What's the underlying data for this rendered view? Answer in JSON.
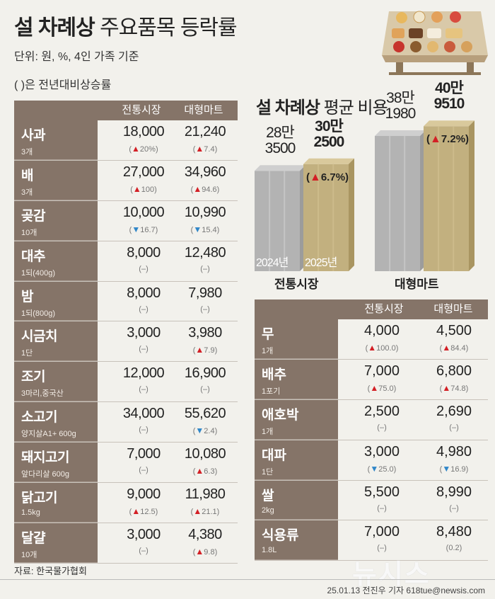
{
  "header": {
    "title_bold": "설 차례상",
    "title_rest": "주요품목 등락률",
    "unit": "단위: 원, %, 4인 가족 기준",
    "note": "( )은 전년대비상승률"
  },
  "colors": {
    "brown": "#857468",
    "up": "#d31f25",
    "down": "#2f86c8",
    "gray_bar": "#b3b3b3",
    "gold_bar": "#c2b07f"
  },
  "left_table": {
    "columns": [
      "전통시장",
      "대형마트"
    ],
    "rows": [
      {
        "name": "사과",
        "unit": "3개",
        "v1": "18,000",
        "c1": {
          "dir": "up",
          "val": "20%"
        },
        "v2": "21,240",
        "c2": {
          "dir": "up",
          "val": "7.4"
        }
      },
      {
        "name": "배",
        "unit": "3개",
        "v1": "27,000",
        "c1": {
          "dir": "up",
          "val": "100"
        },
        "v2": "34,960",
        "c2": {
          "dir": "up",
          "val": "94.6"
        }
      },
      {
        "name": "곶감",
        "unit": "10개",
        "v1": "10,000",
        "c1": {
          "dir": "down",
          "val": "16.7"
        },
        "v2": "10,990",
        "c2": {
          "dir": "down",
          "val": "15.4"
        }
      },
      {
        "name": "대추",
        "unit": "1되(400g)",
        "v1": "8,000",
        "c1": {
          "dir": "none",
          "val": "–"
        },
        "v2": "12,480",
        "c2": {
          "dir": "none",
          "val": "–"
        }
      },
      {
        "name": "밤",
        "unit": "1되(800g)",
        "v1": "8,000",
        "c1": {
          "dir": "none",
          "val": "–"
        },
        "v2": "7,980",
        "c2": {
          "dir": "none",
          "val": "–"
        }
      },
      {
        "name": "시금치",
        "unit": "1단",
        "v1": "3,000",
        "c1": {
          "dir": "none",
          "val": "–"
        },
        "v2": "3,980",
        "c2": {
          "dir": "up",
          "val": "7.9"
        }
      },
      {
        "name": "조기",
        "unit": "3마리,중국산",
        "v1": "12,000",
        "c1": {
          "dir": "none",
          "val": "–"
        },
        "v2": "16,900",
        "c2": {
          "dir": "none",
          "val": "–"
        }
      },
      {
        "name": "소고기",
        "unit": "양지살A1+ 600g",
        "v1": "34,000",
        "c1": {
          "dir": "none",
          "val": "–"
        },
        "v2": "55,620",
        "c2": {
          "dir": "down",
          "val": "2.4"
        }
      },
      {
        "name": "돼지고기",
        "unit": "앞다리살 600g",
        "v1": "7,000",
        "c1": {
          "dir": "none",
          "val": "–"
        },
        "v2": "10,080",
        "c2": {
          "dir": "up",
          "val": "6.3"
        }
      },
      {
        "name": "닭고기",
        "unit": "1.5kg",
        "v1": "9,000",
        "c1": {
          "dir": "up",
          "val": "12.5"
        },
        "v2": "11,980",
        "c2": {
          "dir": "up",
          "val": "21.1"
        }
      },
      {
        "name": "달걀",
        "unit": "10개",
        "v1": "3,000",
        "c1": {
          "dir": "none",
          "val": "–"
        },
        "v2": "4,380",
        "c2": {
          "dir": "up",
          "val": "9.8"
        }
      }
    ]
  },
  "chart_data": {
    "type": "bar",
    "title": "설 차례상 평균 비용",
    "title_bold": "설 차례상",
    "title_rest": "평균 비용",
    "categories": [
      "전통시장",
      "대형마트"
    ],
    "series": [
      {
        "name": "2024년",
        "values": [
          283500,
          381980
        ]
      },
      {
        "name": "2025년",
        "values": [
          302500,
          409510
        ]
      }
    ],
    "value_labels": [
      {
        "line1": "28만",
        "line2": "3500"
      },
      {
        "line1": "30만",
        "line2": "2500"
      },
      {
        "line1": "38만",
        "line2": "1980"
      },
      {
        "line1": "40만",
        "line2": "9510"
      }
    ],
    "growth": [
      "6.7%",
      "7.2%"
    ],
    "ylim": [
      0,
      420000
    ]
  },
  "right_table": {
    "columns": [
      "전통시장",
      "대형마트"
    ],
    "rows": [
      {
        "name": "무",
        "unit": "1개",
        "v1": "4,000",
        "c1": {
          "dir": "up",
          "val": "100.0"
        },
        "v2": "4,500",
        "c2": {
          "dir": "up",
          "val": "84.4"
        }
      },
      {
        "name": "배추",
        "unit": "1포기",
        "v1": "7,000",
        "c1": {
          "dir": "up",
          "val": "75.0"
        },
        "v2": "6,800",
        "c2": {
          "dir": "up",
          "val": "74.8"
        }
      },
      {
        "name": "애호박",
        "unit": "1개",
        "v1": "2,500",
        "c1": {
          "dir": "none",
          "val": "–"
        },
        "v2": "2,690",
        "c2": {
          "dir": "none",
          "val": "–"
        }
      },
      {
        "name": "대파",
        "unit": "1단",
        "v1": "3,000",
        "c1": {
          "dir": "down",
          "val": "25.0"
        },
        "v2": "4,980",
        "c2": {
          "dir": "down",
          "val": "16.9"
        }
      },
      {
        "name": "쌀",
        "unit": "2kg",
        "v1": "5,500",
        "c1": {
          "dir": "none",
          "val": "–"
        },
        "v2": "8,990",
        "c2": {
          "dir": "none",
          "val": "–"
        }
      },
      {
        "name": "식용류",
        "unit": "1.8L",
        "v1": "7,000",
        "c1": {
          "dir": "none",
          "val": "–"
        },
        "v2": "8,480",
        "c2": {
          "dir": "none",
          "val": "0.2"
        }
      }
    ]
  },
  "footer": {
    "source": "자료: 한국물가협회",
    "credit": "25.01.13 전진우 기자 618tue@newsis.com",
    "watermark": "뉴시스"
  }
}
